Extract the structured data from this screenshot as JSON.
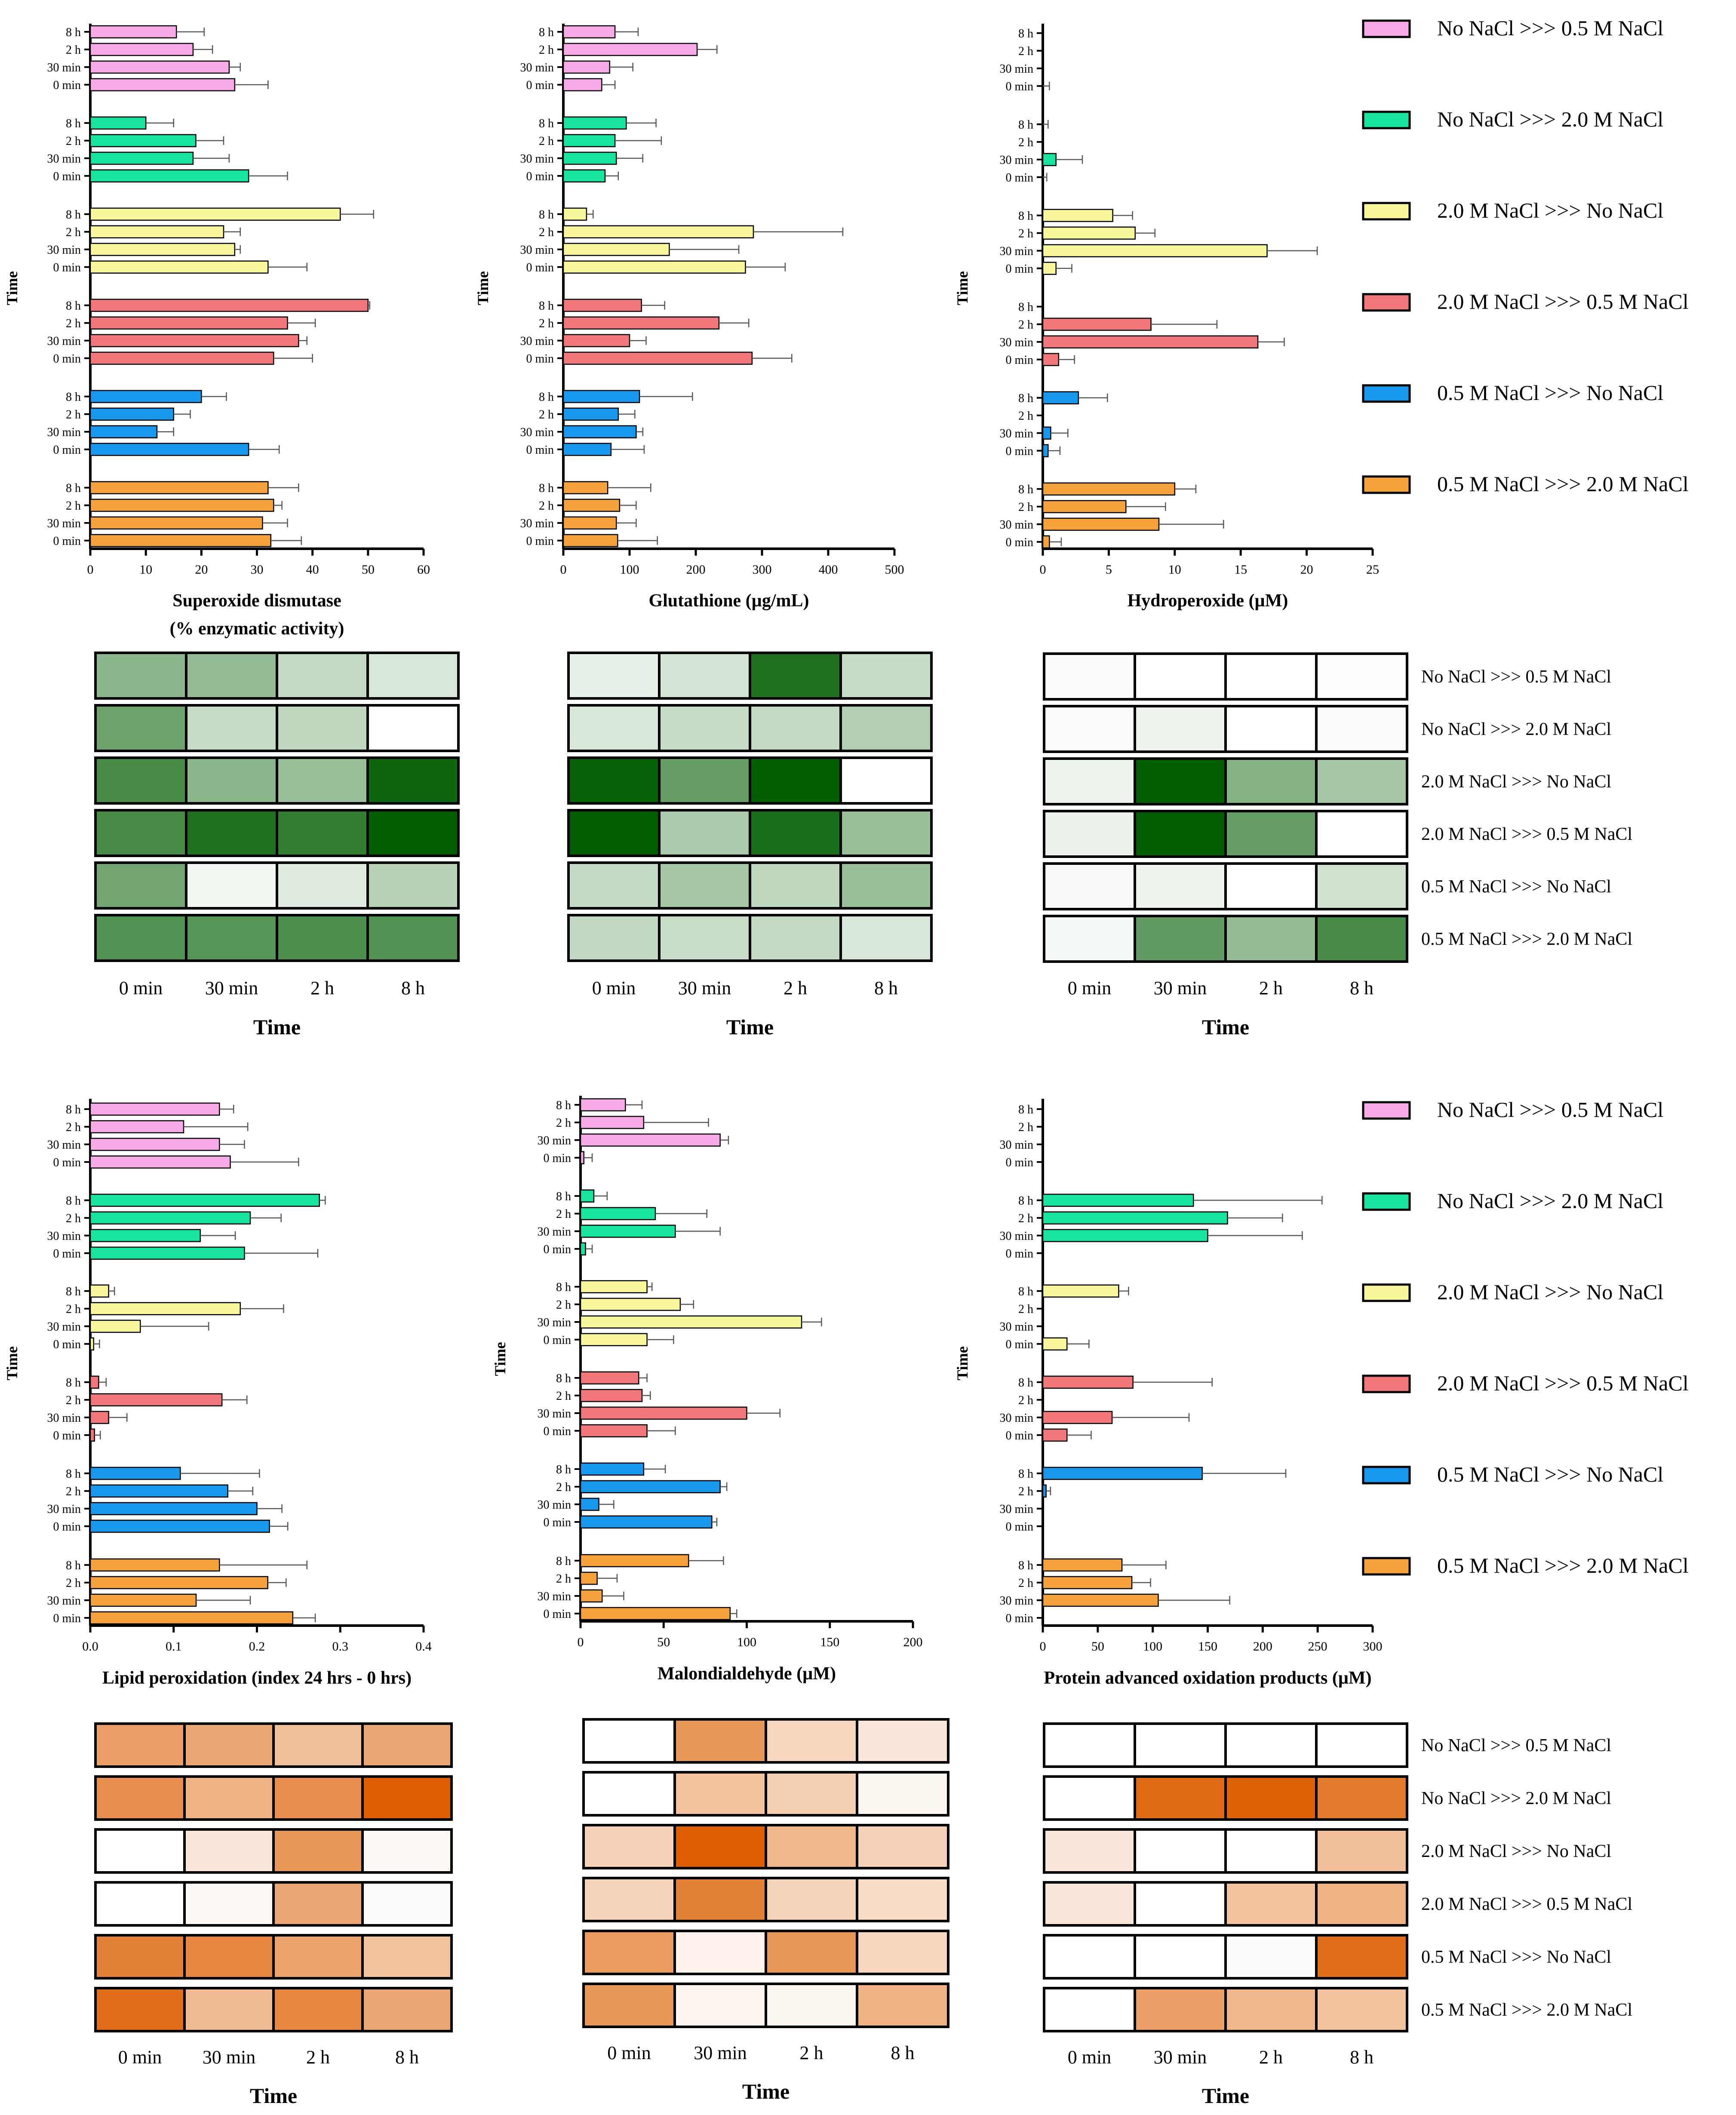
{
  "figure": {
    "time_axis_title": "Time",
    "time_labels": [
      "8 h",
      "2 h",
      "30 min",
      "0 min"
    ],
    "heatmap_time_labels": [
      "0 min",
      "30 min",
      "2 h",
      "8 h"
    ],
    "groups": [
      {
        "name": "No NaCl >>> 0.5 M NaCl",
        "color": "#f7a9e8"
      },
      {
        "name": "No NaCl >>> 2.0 M NaCl",
        "color": "#18e3a1"
      },
      {
        "name": "2.0 M NaCl >>> No NaCl",
        "color": "#f9f79b"
      },
      {
        "name": "2.0 M NaCl >>> 0.5 M NaCl",
        "color": "#f2777a"
      },
      {
        "name": "0.5 M NaCl >>> No NaCl",
        "color": "#1798ec"
      },
      {
        "name": "0.5 M NaCl >>> 2.0 M NaCl",
        "color": "#f6a23c"
      }
    ],
    "heatmap_colors": {
      "green": "#005e00",
      "orange": "#dd5e00"
    }
  },
  "chart_data": [
    {
      "type": "bar",
      "id": "sod",
      "xlabel": "Superoxide dismutase",
      "xlabel2": "(% enzymatic activity)",
      "xlim": [
        0,
        60
      ],
      "xticks": [
        0,
        10,
        20,
        30,
        40,
        50,
        60
      ],
      "series": [
        {
          "name": "No NaCl >>> 0.5 M NaCl",
          "values": [
            15.5,
            18.5,
            25,
            26
          ],
          "errors": [
            5,
            3.5,
            2,
            6
          ]
        },
        {
          "name": "No NaCl >>> 2.0 M NaCl",
          "values": [
            10,
            19,
            18.5,
            28.5
          ],
          "errors": [
            5,
            5,
            6.5,
            7
          ]
        },
        {
          "name": "2.0 M NaCl >>> No NaCl",
          "values": [
            45,
            24,
            26,
            32
          ],
          "errors": [
            6,
            3,
            1,
            7
          ]
        },
        {
          "name": "2.0 M NaCl >>> 0.5 M NaCl",
          "values": [
            50,
            35.5,
            37.5,
            33
          ],
          "errors": [
            0.3,
            5,
            1.5,
            7
          ]
        },
        {
          "name": "0.5 M NaCl >>> No NaCl",
          "values": [
            20,
            15,
            12,
            28.5
          ],
          "errors": [
            4.5,
            3,
            3,
            5.5
          ]
        },
        {
          "name": "0.5 M NaCl >>> 2.0 M NaCl",
          "values": [
            32,
            33,
            31,
            32.5
          ],
          "errors": [
            5.5,
            1.5,
            4.5,
            5.5
          ]
        }
      ]
    },
    {
      "type": "bar",
      "id": "gsh",
      "xlabel": "Glutathione (µg/mL)",
      "xlim": [
        0,
        500
      ],
      "xticks": [
        0,
        100,
        200,
        300,
        400,
        500
      ],
      "series": [
        {
          "name": "No NaCl >>> 0.5 M NaCl",
          "values": [
            78,
            202,
            70,
            58
          ],
          "errors": [
            35,
            30,
            35,
            20
          ]
        },
        {
          "name": "No NaCl >>> 2.0 M NaCl",
          "values": [
            95,
            78,
            80,
            63
          ],
          "errors": [
            45,
            70,
            40,
            20
          ]
        },
        {
          "name": "2.0 M NaCl >>> No NaCl",
          "values": [
            35,
            287,
            160,
            275
          ],
          "errors": [
            10,
            135,
            105,
            60
          ]
        },
        {
          "name": "2.0 M NaCl >>> 0.5 M NaCl",
          "values": [
            118,
            235,
            100,
            285
          ],
          "errors": [
            35,
            45,
            25,
            60
          ]
        },
        {
          "name": "0.5 M NaCl >>> No NaCl",
          "values": [
            115,
            83,
            110,
            72
          ],
          "errors": [
            80,
            25,
            10,
            50
          ]
        },
        {
          "name": "0.5 M NaCl >>> 2.0 M NaCl",
          "values": [
            67,
            85,
            80,
            82
          ],
          "errors": [
            65,
            25,
            30,
            60
          ]
        }
      ]
    },
    {
      "type": "bar",
      "id": "hpx",
      "xlabel": "Hydroperoxide (µM)",
      "xlim": [
        0,
        25
      ],
      "xticks": [
        0,
        5,
        10,
        15,
        20,
        25
      ],
      "series": [
        {
          "name": "No NaCl >>> 0.5 M NaCl",
          "values": [
            0,
            0,
            0,
            0
          ],
          "errors": [
            0,
            0,
            0,
            0.5
          ]
        },
        {
          "name": "No NaCl >>> 2.0 M NaCl",
          "values": [
            0,
            0,
            1,
            0
          ],
          "errors": [
            0.4,
            0,
            2,
            0.3
          ]
        },
        {
          "name": "2.0 M NaCl >>> No NaCl",
          "values": [
            5.3,
            7,
            17,
            1
          ],
          "errors": [
            1.5,
            1.5,
            3.8,
            1.2
          ]
        },
        {
          "name": "2.0 M NaCl >>> 0.5 M NaCl",
          "values": [
            0,
            8.2,
            16.3,
            1.2
          ],
          "errors": [
            0,
            5,
            2,
            1.2
          ]
        },
        {
          "name": "0.5 M NaCl >>> No NaCl",
          "values": [
            2.7,
            0,
            0.6,
            0.4
          ],
          "errors": [
            2.2,
            0,
            1.3,
            0.9
          ]
        },
        {
          "name": "0.5 M NaCl >>> 2.0 M NaCl",
          "values": [
            10,
            6.3,
            8.8,
            0.5
          ],
          "errors": [
            1.6,
            3,
            4.9,
            0.9
          ]
        }
      ]
    },
    {
      "type": "bar",
      "id": "lpx",
      "xlabel": "Lipid peroxidation (index 24 hrs - 0 hrs)",
      "xlim": [
        0,
        0.4
      ],
      "xticks": [
        0.0,
        0.1,
        0.2,
        0.3,
        0.4
      ],
      "series": [
        {
          "name": "No NaCl >>> 0.5 M NaCl",
          "values": [
            0.155,
            0.112,
            0.155,
            0.168
          ],
          "errors": [
            0.017,
            0.077,
            0.03,
            0.082
          ]
        },
        {
          "name": "No NaCl >>> 2.0 M NaCl",
          "values": [
            0.275,
            0.192,
            0.132,
            0.185
          ],
          "errors": [
            0.007,
            0.037,
            0.042,
            0.088
          ]
        },
        {
          "name": "2.0 M NaCl >>> No NaCl",
          "values": [
            0.022,
            0.18,
            0.06,
            0.004
          ],
          "errors": [
            0.007,
            0.052,
            0.082,
            0.007
          ]
        },
        {
          "name": "2.0 M NaCl >>> 0.5 M NaCl",
          "values": [
            0.01,
            0.158,
            0.022,
            0.005
          ],
          "errors": [
            0.009,
            0.03,
            0.022,
            0.007
          ]
        },
        {
          "name": "0.5 M NaCl >>> No NaCl",
          "values": [
            0.108,
            0.165,
            0.2,
            0.215
          ],
          "errors": [
            0.095,
            0.03,
            0.03,
            0.022
          ]
        },
        {
          "name": "0.5 M NaCl >>> 2.0 M NaCl",
          "values": [
            0.155,
            0.213,
            0.127,
            0.243
          ],
          "errors": [
            0.105,
            0.022,
            0.065,
            0.027
          ]
        }
      ]
    },
    {
      "type": "bar",
      "id": "mda",
      "xlabel": "Malondialdehyde (µM)",
      "xlim": [
        0,
        200
      ],
      "xticks": [
        0,
        50,
        100,
        150,
        200
      ],
      "series": [
        {
          "name": "No NaCl >>> 0.5 M NaCl",
          "values": [
            27,
            38,
            84,
            2
          ],
          "errors": [
            10,
            39,
            5,
            5
          ]
        },
        {
          "name": "No NaCl >>> 2.0 M NaCl",
          "values": [
            8,
            45,
            57,
            3
          ],
          "errors": [
            8,
            31,
            27,
            4
          ]
        },
        {
          "name": "2.0 M NaCl >>> No NaCl",
          "values": [
            40,
            60,
            133,
            40
          ],
          "errors": [
            3,
            8,
            12,
            16
          ]
        },
        {
          "name": "2.0 M NaCl >>> 0.5 M NaCl",
          "values": [
            35,
            37,
            100,
            40
          ],
          "errors": [
            5,
            5,
            20,
            17
          ]
        },
        {
          "name": "0.5 M NaCl >>> No NaCl",
          "values": [
            38,
            84,
            11,
            79
          ],
          "errors": [
            13,
            4,
            9,
            3
          ]
        },
        {
          "name": "0.5 M NaCl >>> 2.0 M NaCl",
          "values": [
            65,
            10,
            13,
            90
          ],
          "errors": [
            21,
            12,
            13,
            4
          ]
        }
      ]
    },
    {
      "type": "bar",
      "id": "aopp",
      "xlabel": "Protein advanced oxidation products (µM)",
      "xlim": [
        0,
        300
      ],
      "xticks": [
        0,
        50,
        100,
        150,
        200,
        250,
        300
      ],
      "series": [
        {
          "name": "No NaCl >>> 0.5 M NaCl",
          "values": [
            0,
            0,
            0,
            0
          ],
          "errors": [
            0,
            0,
            0,
            0
          ]
        },
        {
          "name": "No NaCl >>> 2.0 M NaCl",
          "values": [
            137,
            168,
            150,
            0
          ],
          "errors": [
            117,
            50,
            86,
            0
          ]
        },
        {
          "name": "2.0 M NaCl >>> No NaCl",
          "values": [
            69,
            0,
            0,
            22
          ],
          "errors": [
            9,
            0,
            0,
            20
          ]
        },
        {
          "name": "2.0 M NaCl >>> 0.5 M NaCl",
          "values": [
            82,
            0,
            63,
            22
          ],
          "errors": [
            72,
            0,
            70,
            22
          ]
        },
        {
          "name": "0.5 M NaCl >>> No NaCl",
          "values": [
            145,
            3,
            0,
            0
          ],
          "errors": [
            76,
            4,
            0,
            0
          ]
        },
        {
          "name": "0.5 M NaCl >>> 2.0 M NaCl",
          "values": [
            72,
            81,
            105,
            0
          ],
          "errors": [
            40,
            17,
            65,
            0
          ]
        }
      ]
    },
    {
      "type": "heatmap",
      "id": "hm_sod",
      "palette": "green",
      "columns": [
        "0 min",
        "30 min",
        "2 h",
        "8 h"
      ],
      "values": [
        [
          0.45,
          0.42,
          0.23,
          0.15
        ],
        [
          0.57,
          0.22,
          0.25,
          0.0
        ],
        [
          0.72,
          0.45,
          0.4,
          0.95
        ],
        [
          0.72,
          0.88,
          0.8,
          1.0
        ],
        [
          0.55,
          0.05,
          0.12,
          0.28
        ],
        [
          0.68,
          0.66,
          0.7,
          0.68
        ]
      ]
    },
    {
      "type": "heatmap",
      "id": "hm_gsh",
      "palette": "green",
      "columns": [
        "0 min",
        "30 min",
        "2 h",
        "8 h"
      ],
      "values": [
        [
          0.09,
          0.17,
          0.88,
          0.22
        ],
        [
          0.15,
          0.22,
          0.23,
          0.3
        ],
        [
          0.98,
          0.6,
          1.0,
          0.0
        ],
        [
          1.0,
          0.33,
          0.9,
          0.4
        ],
        [
          0.23,
          0.35,
          0.25,
          0.4
        ],
        [
          0.24,
          0.21,
          0.23,
          0.15
        ]
      ]
    },
    {
      "type": "heatmap",
      "id": "hm_hpx",
      "palette": "green",
      "columns": [
        "0 min",
        "30 min",
        "2 h",
        "8 h"
      ],
      "values": [
        [
          0.02,
          0.0,
          0.0,
          0.01
        ],
        [
          0.02,
          0.07,
          0.0,
          0.02
        ],
        [
          0.07,
          1.0,
          0.48,
          0.35
        ],
        [
          0.08,
          1.0,
          0.6,
          0.0
        ],
        [
          0.03,
          0.07,
          0.0,
          0.18
        ],
        [
          0.04,
          0.62,
          0.42,
          0.72
        ]
      ]
    },
    {
      "type": "heatmap",
      "id": "hm_lpx",
      "palette": "orange",
      "columns": [
        "0 min",
        "30 min",
        "2 h",
        "8 h"
      ],
      "values": [
        [
          0.6,
          0.55,
          0.4,
          0.55
        ],
        [
          0.7,
          0.48,
          0.7,
          1.0
        ],
        [
          0.0,
          0.15,
          0.65,
          0.04
        ],
        [
          0.0,
          0.04,
          0.55,
          0.02
        ],
        [
          0.78,
          0.75,
          0.58,
          0.38
        ],
        [
          0.9,
          0.42,
          0.75,
          0.55
        ]
      ]
    },
    {
      "type": "heatmap",
      "id": "hm_mda",
      "palette": "orange",
      "columns": [
        "0 min",
        "30 min",
        "2 h",
        "8 h"
      ],
      "values": [
        [
          0.0,
          0.65,
          0.25,
          0.15
        ],
        [
          0.0,
          0.38,
          0.3,
          0.05
        ],
        [
          0.28,
          1.0,
          0.45,
          0.28
        ],
        [
          0.26,
          0.78,
          0.27,
          0.22
        ],
        [
          0.62,
          0.08,
          0.65,
          0.25
        ],
        [
          0.65,
          0.06,
          0.05,
          0.48
        ]
      ]
    },
    {
      "type": "heatmap",
      "id": "hm_aopp",
      "palette": "orange",
      "columns": [
        "0 min",
        "30 min",
        "2 h",
        "8 h"
      ],
      "values": [
        [
          0.0,
          0.0,
          0.0,
          0.0
        ],
        [
          0.0,
          0.92,
          0.98,
          0.82
        ],
        [
          0.15,
          0.0,
          0.0,
          0.4
        ],
        [
          0.15,
          0.0,
          0.38,
          0.48
        ],
        [
          0.0,
          0.0,
          0.02,
          0.9
        ],
        [
          0.0,
          0.6,
          0.45,
          0.38
        ]
      ]
    }
  ]
}
